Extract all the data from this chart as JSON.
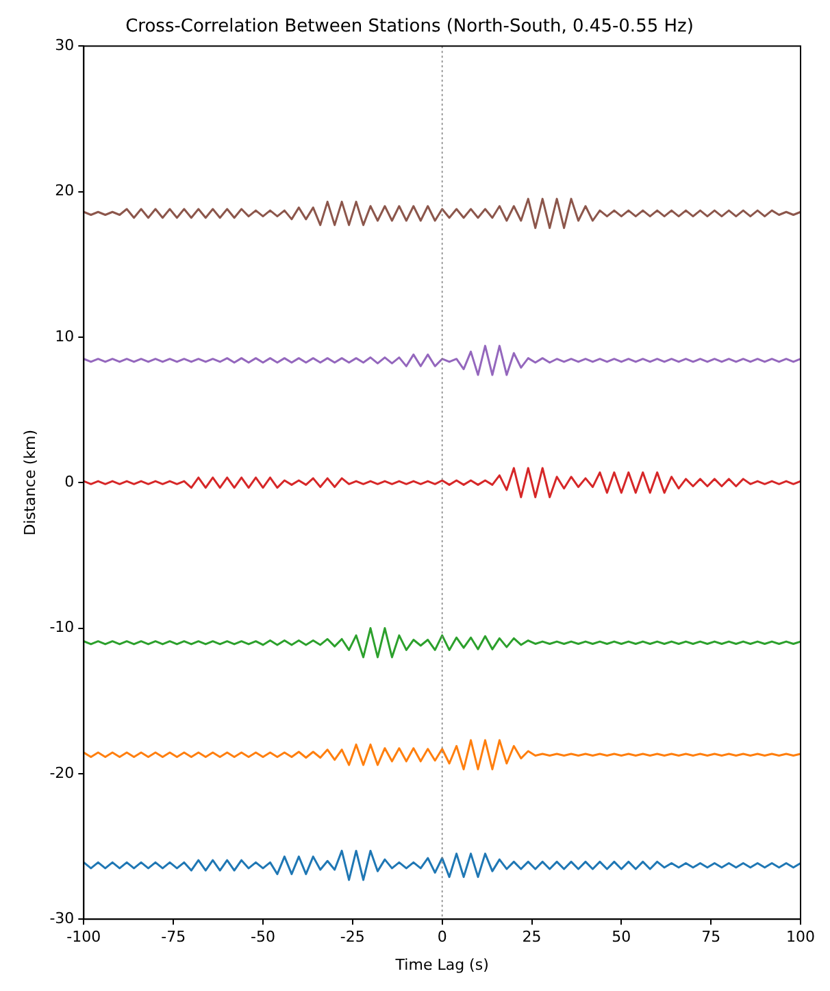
{
  "chart_data": {
    "type": "line",
    "title": "Cross-Correlation Between Stations (North-South, 0.45-0.55 Hz)",
    "xlabel": "Time Lag (s)",
    "ylabel": "Distance (km)",
    "x": [
      -100,
      -98,
      -96,
      -94,
      -92,
      -90,
      -88,
      -86,
      -84,
      -82,
      -80,
      -78,
      -76,
      -74,
      -72,
      -70,
      -68,
      -66,
      -64,
      -62,
      -60,
      -58,
      -56,
      -54,
      -52,
      -50,
      -48,
      -46,
      -44,
      -42,
      -40,
      -38,
      -36,
      -34,
      -32,
      -30,
      -28,
      -26,
      -24,
      -22,
      -20,
      -18,
      -16,
      -14,
      -12,
      -10,
      -8,
      -6,
      -4,
      -2,
      0,
      2,
      4,
      6,
      8,
      10,
      12,
      14,
      16,
      18,
      20,
      22,
      24,
      26,
      28,
      30,
      32,
      34,
      36,
      38,
      40,
      42,
      44,
      46,
      48,
      50,
      52,
      54,
      56,
      58,
      60,
      62,
      64,
      66,
      68,
      70,
      72,
      74,
      76,
      78,
      80,
      82,
      84,
      86,
      88,
      90,
      92,
      94,
      96,
      98,
      100
    ],
    "series": [
      {
        "color": "#1f77b4",
        "values": [
          -26.1,
          -26.5,
          -26.1,
          -26.5,
          -26.1,
          -26.5,
          -26.1,
          -26.5,
          -26.1,
          -26.5,
          -26.1,
          -26.5,
          -26.1,
          -26.5,
          -26.1,
          -26.65,
          -25.95,
          -26.65,
          -25.95,
          -26.65,
          -25.95,
          -26.65,
          -25.95,
          -26.5,
          -26.1,
          -26.5,
          -26.1,
          -26.9,
          -25.7,
          -26.9,
          -25.7,
          -26.9,
          -25.7,
          -26.6,
          -26.0,
          -26.6,
          -25.3,
          -27.3,
          -25.3,
          -27.3,
          -25.3,
          -26.7,
          -25.9,
          -26.5,
          -26.1,
          -26.5,
          -26.1,
          -26.5,
          -25.8,
          -26.8,
          -25.8,
          -27.1,
          -25.5,
          -27.1,
          -25.5,
          -27.1,
          -25.5,
          -26.7,
          -25.9,
          -26.55,
          -26.05,
          -26.55,
          -26.05,
          -26.55,
          -26.05,
          -26.55,
          -26.05,
          -26.55,
          -26.05,
          -26.55,
          -26.05,
          -26.55,
          -26.05,
          -26.55,
          -26.05,
          -26.55,
          -26.05,
          -26.55,
          -26.05,
          -26.55,
          -26.05,
          -26.45,
          -26.15,
          -26.45,
          -26.15,
          -26.45,
          -26.15,
          -26.45,
          -26.15,
          -26.45,
          -26.15,
          -26.45,
          -26.15,
          -26.45,
          -26.15,
          -26.45,
          -26.15,
          -26.45,
          -26.15,
          -26.45,
          -26.15
        ]
      },
      {
        "color": "#ff7f0e",
        "values": [
          -18.55,
          -18.85,
          -18.55,
          -18.85,
          -18.55,
          -18.85,
          -18.55,
          -18.85,
          -18.55,
          -18.85,
          -18.55,
          -18.85,
          -18.55,
          -18.85,
          -18.55,
          -18.85,
          -18.55,
          -18.85,
          -18.55,
          -18.85,
          -18.55,
          -18.85,
          -18.55,
          -18.85,
          -18.55,
          -18.85,
          -18.55,
          -18.85,
          -18.55,
          -18.85,
          -18.5,
          -18.9,
          -18.5,
          -18.9,
          -18.35,
          -19.05,
          -18.35,
          -19.4,
          -18.0,
          -19.4,
          -18.0,
          -19.4,
          -18.25,
          -19.15,
          -18.25,
          -19.15,
          -18.25,
          -19.15,
          -18.3,
          -19.1,
          -18.3,
          -19.3,
          -18.1,
          -19.7,
          -17.7,
          -19.7,
          -17.7,
          -19.7,
          -17.7,
          -19.3,
          -18.1,
          -18.95,
          -18.45,
          -18.76,
          -18.64,
          -18.76,
          -18.64,
          -18.76,
          -18.64,
          -18.76,
          -18.64,
          -18.76,
          -18.64,
          -18.76,
          -18.64,
          -18.76,
          -18.64,
          -18.76,
          -18.64,
          -18.76,
          -18.64,
          -18.76,
          -18.64,
          -18.76,
          -18.64,
          -18.76,
          -18.64,
          -18.76,
          -18.64,
          -18.76,
          -18.64,
          -18.76,
          -18.64,
          -18.76,
          -18.64,
          -18.76,
          -18.64,
          -18.76,
          -18.64,
          -18.76,
          -18.64
        ]
      },
      {
        "color": "#2ca02c",
        "values": [
          -10.9,
          -11.1,
          -10.9,
          -11.1,
          -10.9,
          -11.1,
          -10.9,
          -11.1,
          -10.9,
          -11.1,
          -10.9,
          -11.1,
          -10.9,
          -11.1,
          -10.9,
          -11.1,
          -10.9,
          -11.1,
          -10.9,
          -11.1,
          -10.9,
          -11.1,
          -10.9,
          -11.1,
          -10.9,
          -11.15,
          -10.85,
          -11.15,
          -10.85,
          -11.15,
          -10.85,
          -11.15,
          -10.85,
          -11.15,
          -10.75,
          -11.25,
          -10.75,
          -11.5,
          -10.5,
          -12,
          -10,
          -12,
          -10,
          -12,
          -10.5,
          -11.5,
          -10.8,
          -11.2,
          -10.8,
          -11.5,
          -10.5,
          -11.5,
          -10.65,
          -11.35,
          -10.65,
          -11.45,
          -10.55,
          -11.45,
          -10.7,
          -11.3,
          -10.7,
          -11.15,
          -10.85,
          -11.08,
          -10.92,
          -11.08,
          -10.92,
          -11.08,
          -10.92,
          -11.08,
          -10.92,
          -11.08,
          -10.92,
          -11.08,
          -10.92,
          -11.08,
          -10.92,
          -11.08,
          -10.92,
          -11.08,
          -10.92,
          -11.08,
          -10.92,
          -11.08,
          -10.92,
          -11.08,
          -10.92,
          -11.08,
          -10.92,
          -11.08,
          -10.92,
          -11.08,
          -10.92,
          -11.08,
          -10.92,
          -11.08,
          -10.92,
          -11.08,
          -10.92,
          -11.08,
          -10.92
        ]
      },
      {
        "color": "#d62728",
        "values": [
          0.1,
          -0.1,
          0.1,
          -0.1,
          0.1,
          -0.1,
          0.1,
          -0.1,
          0.1,
          -0.1,
          0.1,
          -0.1,
          0.1,
          -0.1,
          0.1,
          -0.35,
          0.35,
          -0.35,
          0.35,
          -0.35,
          0.35,
          -0.35,
          0.35,
          -0.35,
          0.35,
          -0.35,
          0.35,
          -0.35,
          0.15,
          -0.15,
          0.15,
          -0.15,
          0.3,
          -0.3,
          0.3,
          -0.3,
          0.3,
          -0.1,
          0.1,
          -0.1,
          0.1,
          -0.1,
          0.1,
          -0.1,
          0.1,
          -0.1,
          0.1,
          -0.1,
          0.1,
          -0.1,
          0.15,
          -0.15,
          0.15,
          -0.15,
          0.15,
          -0.15,
          0.15,
          -0.15,
          0.5,
          -0.5,
          1,
          -1,
          1,
          -1,
          1,
          -1,
          0.4,
          -0.4,
          0.4,
          -0.3,
          0.3,
          -0.3,
          0.7,
          -0.7,
          0.7,
          -0.7,
          0.7,
          -0.7,
          0.7,
          -0.7,
          0.7,
          -0.7,
          0.4,
          -0.4,
          0.25,
          -0.25,
          0.25,
          -0.25,
          0.25,
          -0.25,
          0.25,
          -0.25,
          0.25,
          -0.1,
          0.1,
          -0.1,
          0.1,
          -0.1,
          0.1,
          -0.1,
          0.1
        ]
      },
      {
        "color": "#9467bd",
        "values": [
          8.5,
          8.3,
          8.5,
          8.3,
          8.5,
          8.3,
          8.5,
          8.3,
          8.5,
          8.3,
          8.5,
          8.3,
          8.5,
          8.3,
          8.5,
          8.3,
          8.5,
          8.3,
          8.5,
          8.3,
          8.55,
          8.25,
          8.55,
          8.25,
          8.55,
          8.25,
          8.55,
          8.25,
          8.55,
          8.25,
          8.55,
          8.25,
          8.55,
          8.25,
          8.55,
          8.25,
          8.55,
          8.25,
          8.55,
          8.25,
          8.6,
          8.2,
          8.6,
          8.2,
          8.6,
          8.0,
          8.8,
          8.0,
          8.8,
          8.0,
          8.5,
          8.3,
          8.5,
          7.8,
          9.0,
          7.4,
          9.4,
          7.4,
          9.4,
          7.4,
          8.9,
          7.9,
          8.55,
          8.25,
          8.55,
          8.25,
          8.5,
          8.3,
          8.5,
          8.3,
          8.5,
          8.3,
          8.5,
          8.3,
          8.5,
          8.3,
          8.5,
          8.3,
          8.5,
          8.3,
          8.5,
          8.3,
          8.5,
          8.3,
          8.5,
          8.3,
          8.5,
          8.3,
          8.5,
          8.3,
          8.5,
          8.3,
          8.5,
          8.3,
          8.5,
          8.3,
          8.5,
          8.3,
          8.5,
          8.3,
          8.5
        ]
      },
      {
        "color": "#8c564b",
        "values": [
          18.6,
          18.4,
          18.6,
          18.4,
          18.6,
          18.4,
          18.8,
          18.2,
          18.8,
          18.2,
          18.8,
          18.2,
          18.8,
          18.2,
          18.8,
          18.2,
          18.8,
          18.2,
          18.8,
          18.2,
          18.8,
          18.2,
          18.8,
          18.3,
          18.7,
          18.3,
          18.7,
          18.3,
          18.7,
          18.1,
          18.9,
          18.1,
          18.9,
          17.7,
          19.3,
          17.7,
          19.3,
          17.7,
          19.3,
          17.7,
          19.0,
          18.0,
          19.0,
          18.0,
          19.0,
          18.0,
          19.0,
          18.0,
          19.0,
          18.0,
          18.8,
          18.2,
          18.8,
          18.2,
          18.8,
          18.2,
          18.8,
          18.2,
          19.0,
          18.0,
          19.0,
          18.0,
          19.5,
          17.5,
          19.5,
          17.5,
          19.5,
          17.5,
          19.5,
          18.0,
          19.0,
          18.0,
          18.7,
          18.3,
          18.7,
          18.3,
          18.7,
          18.3,
          18.7,
          18.3,
          18.7,
          18.3,
          18.7,
          18.3,
          18.7,
          18.3,
          18.7,
          18.3,
          18.7,
          18.3,
          18.7,
          18.3,
          18.7,
          18.3,
          18.7,
          18.3,
          18.7,
          18.4,
          18.6,
          18.4,
          18.6
        ]
      }
    ],
    "xlim": [
      -100,
      100
    ],
    "xticks": [
      -100,
      -75,
      -50,
      -25,
      0,
      25,
      50,
      75,
      100
    ],
    "ylim": [
      -30,
      30
    ],
    "yticks": [
      -30,
      -20,
      -10,
      0,
      10,
      20,
      30
    ],
    "ref_lines": [
      {
        "axis": "x",
        "value": 0,
        "color": "#808080",
        "line_style": "dotted"
      }
    ],
    "grid": false,
    "legend": false,
    "marker": "none",
    "line_style": "solid"
  }
}
